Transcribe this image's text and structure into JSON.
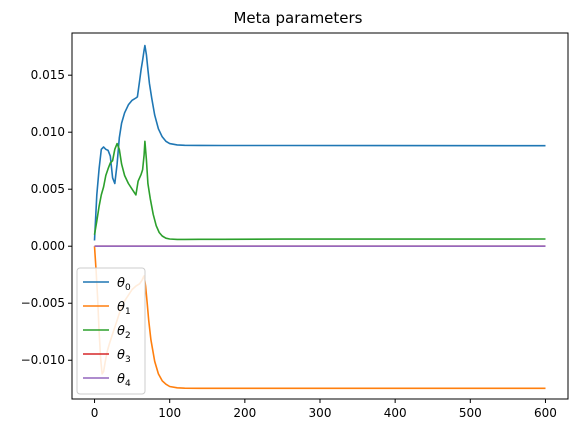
{
  "chart_data": {
    "type": "line",
    "title": "Meta parameters",
    "xlabel": "",
    "ylabel": "",
    "xlim": [
      -30,
      630
    ],
    "ylim": [
      -0.0134,
      0.0187
    ],
    "xticks": [
      0,
      100,
      200,
      300,
      400,
      500,
      600
    ],
    "yticks": [
      -0.01,
      -0.005,
      0.0,
      0.005,
      0.01,
      0.015
    ],
    "ytick_labels": [
      "−0.010",
      "−0.005",
      "0.000",
      "0.005",
      "0.010",
      "0.015"
    ],
    "grid": false,
    "legend_position": "lower-left",
    "series": [
      {
        "name": "θ0",
        "base": "θ",
        "sub": "0",
        "color": "#1f77b4",
        "x": [
          0,
          3,
          6,
          9,
          12,
          15,
          18,
          21,
          24,
          27,
          30,
          33,
          36,
          40,
          45,
          50,
          55,
          57,
          60,
          62,
          64,
          66,
          67,
          69,
          71,
          73,
          76,
          80,
          85,
          90,
          95,
          100,
          110,
          120,
          140,
          170,
          250,
          600
        ],
        "y": [
          0.0005,
          0.0045,
          0.0068,
          0.0085,
          0.0087,
          0.0085,
          0.0084,
          0.0079,
          0.006,
          0.0055,
          0.0072,
          0.0095,
          0.0108,
          0.0117,
          0.0124,
          0.0128,
          0.013,
          0.0131,
          0.0145,
          0.0155,
          0.0163,
          0.0172,
          0.0176,
          0.0168,
          0.0155,
          0.0143,
          0.013,
          0.0115,
          0.0103,
          0.0096,
          0.0092,
          0.009,
          0.00889,
          0.00885,
          0.00884,
          0.00883,
          0.00883,
          0.00882
        ]
      },
      {
        "name": "θ1",
        "base": "θ",
        "sub": "1",
        "color": "#ff7f0e",
        "x": [
          0,
          2,
          4,
          6,
          8,
          10,
          12,
          14,
          17,
          20,
          25,
          30,
          35,
          40,
          45,
          50,
          55,
          60,
          63,
          65,
          66,
          68,
          70,
          72,
          75,
          80,
          85,
          90,
          95,
          100,
          110,
          120,
          140,
          170,
          250,
          600
        ],
        "y": [
          0.0,
          -0.002,
          -0.0045,
          -0.0075,
          -0.0098,
          -0.0112,
          -0.011,
          -0.0102,
          -0.0092,
          -0.0085,
          -0.0075,
          -0.0065,
          -0.0055,
          -0.0048,
          -0.0043,
          -0.0038,
          -0.0035,
          -0.0033,
          -0.003,
          -0.0027,
          -0.0026,
          -0.0035,
          -0.005,
          -0.0065,
          -0.0082,
          -0.0101,
          -0.0112,
          -0.0118,
          -0.0121,
          -0.0123,
          -0.01242,
          -0.01245,
          -0.01246,
          -0.01246,
          -0.01246,
          -0.01246
        ]
      },
      {
        "name": "θ2",
        "base": "θ",
        "sub": "2",
        "color": "#2ca02c",
        "x": [
          0,
          3,
          6,
          9,
          12,
          15,
          18,
          21,
          24,
          27,
          30,
          33,
          36,
          40,
          45,
          50,
          55,
          58,
          62,
          64,
          66,
          67,
          69,
          71,
          74,
          78,
          82,
          86,
          90,
          95,
          100,
          110,
          120,
          140,
          170,
          250,
          600
        ],
        "y": [
          0.001,
          0.0022,
          0.0035,
          0.0045,
          0.0052,
          0.0062,
          0.0068,
          0.0073,
          0.0075,
          0.0085,
          0.009,
          0.0085,
          0.0072,
          0.0062,
          0.0055,
          0.005,
          0.0045,
          0.0057,
          0.0063,
          0.0067,
          0.008,
          0.0092,
          0.0076,
          0.0055,
          0.0042,
          0.0028,
          0.0018,
          0.0012,
          0.0009,
          0.0007,
          0.00063,
          0.0006,
          0.0006,
          0.00061,
          0.00061,
          0.00062,
          0.00063
        ]
      },
      {
        "name": "θ3",
        "base": "θ",
        "sub": "3",
        "color": "#d62728",
        "x": [
          0,
          600
        ],
        "y": [
          0.0,
          0.0
        ]
      },
      {
        "name": "θ4",
        "base": "θ",
        "sub": "4",
        "color": "#9467bd",
        "x": [
          0,
          600
        ],
        "y": [
          0.0,
          0.0
        ]
      }
    ]
  }
}
